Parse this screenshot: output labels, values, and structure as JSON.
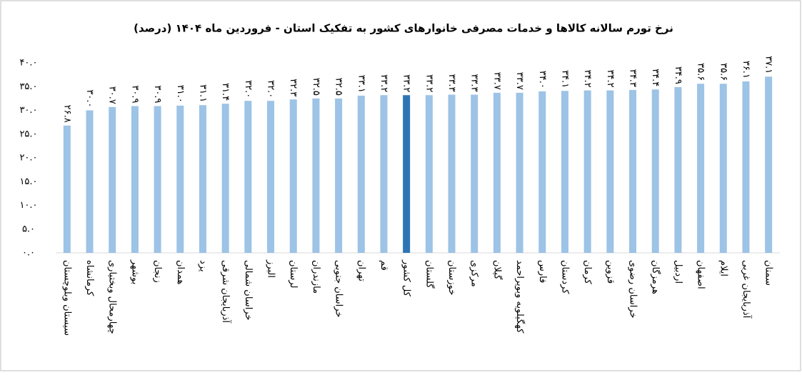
{
  "chart_data": {
    "type": "bar",
    "title": "نرخ تورم سالانه کالاها و خدمات مصرفی خانوارهای کشور به تفکیک استان - فروردین ماه ۱۴۰۴ (درصد)",
    "categories": [
      "سیستان وبلوچستان",
      "کرمانشاه",
      "چهارمحال وبختیاری",
      "بوشهر",
      "زنجان",
      "همدان",
      "یزد",
      "آذربایجان شرقی",
      "خراسان شمالی",
      "البرز",
      "لرستان",
      "مازندران",
      "خراسان جنوبی",
      "تهران",
      "قم",
      "کل کشور",
      "گلستان",
      "خوزستان",
      "مرکزی",
      "گیلان",
      "کهگیلویه وبویراحمد",
      "فارس",
      "کردستان",
      "کرمان",
      "قزوین",
      "خراسان رضوی",
      "هرمزگان",
      "اردبیل",
      "اصفهان",
      "ایلام",
      "آذربایجان غربی",
      "سمنان"
    ],
    "values": [
      26.8,
      30.0,
      30.7,
      30.9,
      30.9,
      31.0,
      31.1,
      31.4,
      32.0,
      32.0,
      32.3,
      32.5,
      32.5,
      33.1,
      33.2,
      33.2,
      33.2,
      33.3,
      33.3,
      33.7,
      33.7,
      34.0,
      34.1,
      34.2,
      34.2,
      34.3,
      34.4,
      34.9,
      35.6,
      35.6,
      36.1,
      37.1
    ],
    "value_labels": [
      "۲۶.۸",
      "۳۰.۰",
      "۳۰.۷",
      "۳۰.۹",
      "۳۰.۹",
      "۳۱.۰",
      "۳۱.۱",
      "۳۱.۴",
      "۳۲.۰",
      "۳۲.۰",
      "۳۲.۳",
      "۳۲.۵",
      "۳۲.۵",
      "۳۳.۱",
      "۳۳.۲",
      "۳۳.۲",
      "۳۳.۲",
      "۳۳.۳",
      "۳۳.۳",
      "۳۳.۷",
      "۳۳.۷",
      "۳۴.۰",
      "۳۴.۱",
      "۳۴.۲",
      "۳۴.۲",
      "۳۴.۳",
      "۳۴.۴",
      "۳۴.۹",
      "۳۵.۶",
      "۳۵.۶",
      "۳۶.۱",
      "۳۷.۱"
    ],
    "colors": [
      "#9dc3e6",
      "#9dc3e6",
      "#9dc3e6",
      "#9dc3e6",
      "#9dc3e6",
      "#9dc3e6",
      "#9dc3e6",
      "#9dc3e6",
      "#9dc3e6",
      "#9dc3e6",
      "#9dc3e6",
      "#9dc3e6",
      "#9dc3e6",
      "#9dc3e6",
      "#9dc3e6",
      "#2e75b6",
      "#9dc3e6",
      "#9dc3e6",
      "#9dc3e6",
      "#9dc3e6",
      "#9dc3e6",
      "#9dc3e6",
      "#9dc3e6",
      "#9dc3e6",
      "#9dc3e6",
      "#9dc3e6",
      "#9dc3e6",
      "#9dc3e6",
      "#9dc3e6",
      "#9dc3e6",
      "#9dc3e6",
      "#9dc3e6"
    ],
    "ylim": [
      0,
      40
    ],
    "yticks": [
      {
        "value": 0,
        "label": "۰.۰"
      },
      {
        "value": 5,
        "label": "۵.۰"
      },
      {
        "value": 10,
        "label": "۱۰.۰"
      },
      {
        "value": 15,
        "label": "۱۵.۰"
      },
      {
        "value": 20,
        "label": "۲۰.۰"
      },
      {
        "value": 25,
        "label": "۲۵.۰"
      },
      {
        "value": 30,
        "label": "۳۰.۰"
      },
      {
        "value": 35,
        "label": "۳۵.۰"
      },
      {
        "value": 40,
        "label": "۴۰.۰"
      }
    ],
    "grid": false
  }
}
